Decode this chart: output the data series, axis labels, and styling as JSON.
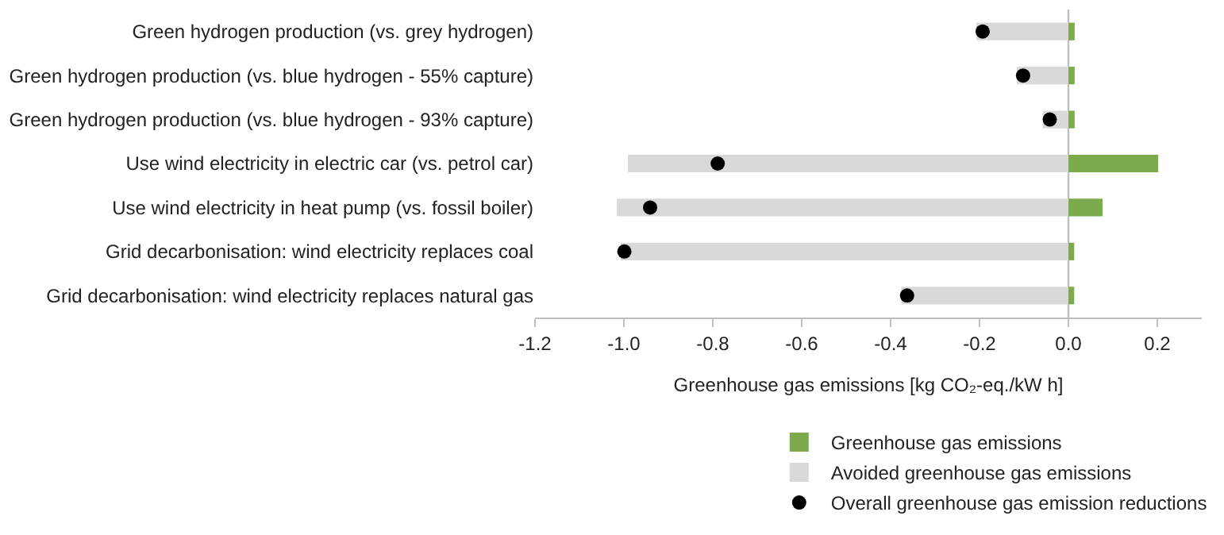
{
  "chart_data": {
    "type": "bar",
    "orientation": "horizontal",
    "stacked": true,
    "xlabel": "Greenhouse gas emissions [kg CO₂-eq./kW h]",
    "categories": [
      "Green hydrogen production (vs. grey hydrogen)",
      "Green hydrogen production (vs. blue hydrogen - 55% capture)",
      "Green hydrogen production (vs. blue hydrogen - 93% capture)",
      "Use wind electricity in electric car (vs. petrol car)",
      "Use wind electricity in heat pump (vs. fossil boiler)",
      "Grid decarbonisation: wind electricity replaces coal",
      "Grid decarbonisation: wind electricity replaces natural gas"
    ],
    "series": [
      {
        "name": "Greenhouse gas emissions",
        "color": "#7daa4d",
        "values": [
          0.014,
          0.014,
          0.014,
          0.202,
          0.077,
          0.013,
          0.013
        ]
      },
      {
        "name": "Avoided greenhouse gas emissions",
        "color": "#d9d9d9",
        "values": [
          -0.207,
          -0.116,
          -0.058,
          -0.991,
          -1.016,
          -1.007,
          -0.376
        ]
      },
      {
        "name": "Overall greenhouse gas emission reductions",
        "type": "scatter",
        "marker": "circle",
        "color": "#000000",
        "values": [
          -0.193,
          -0.102,
          -0.042,
          -0.789,
          -0.941,
          -0.999,
          -0.363
        ]
      }
    ],
    "xlim": [
      -1.2,
      0.3
    ],
    "xticks": [
      {
        "value": -1.2,
        "label": "-1.2"
      },
      {
        "value": -1.0,
        "label": "-1.0"
      },
      -0.8,
      -0.6,
      -0.4,
      -0.2,
      {
        "value": 0.0,
        "label": "0.0"
      },
      0.2
    ],
    "ref_lines": [
      {
        "axis": "x",
        "value": 0,
        "color": "#bfbfbf"
      }
    ],
    "grid": false,
    "legend": "bottom"
  }
}
